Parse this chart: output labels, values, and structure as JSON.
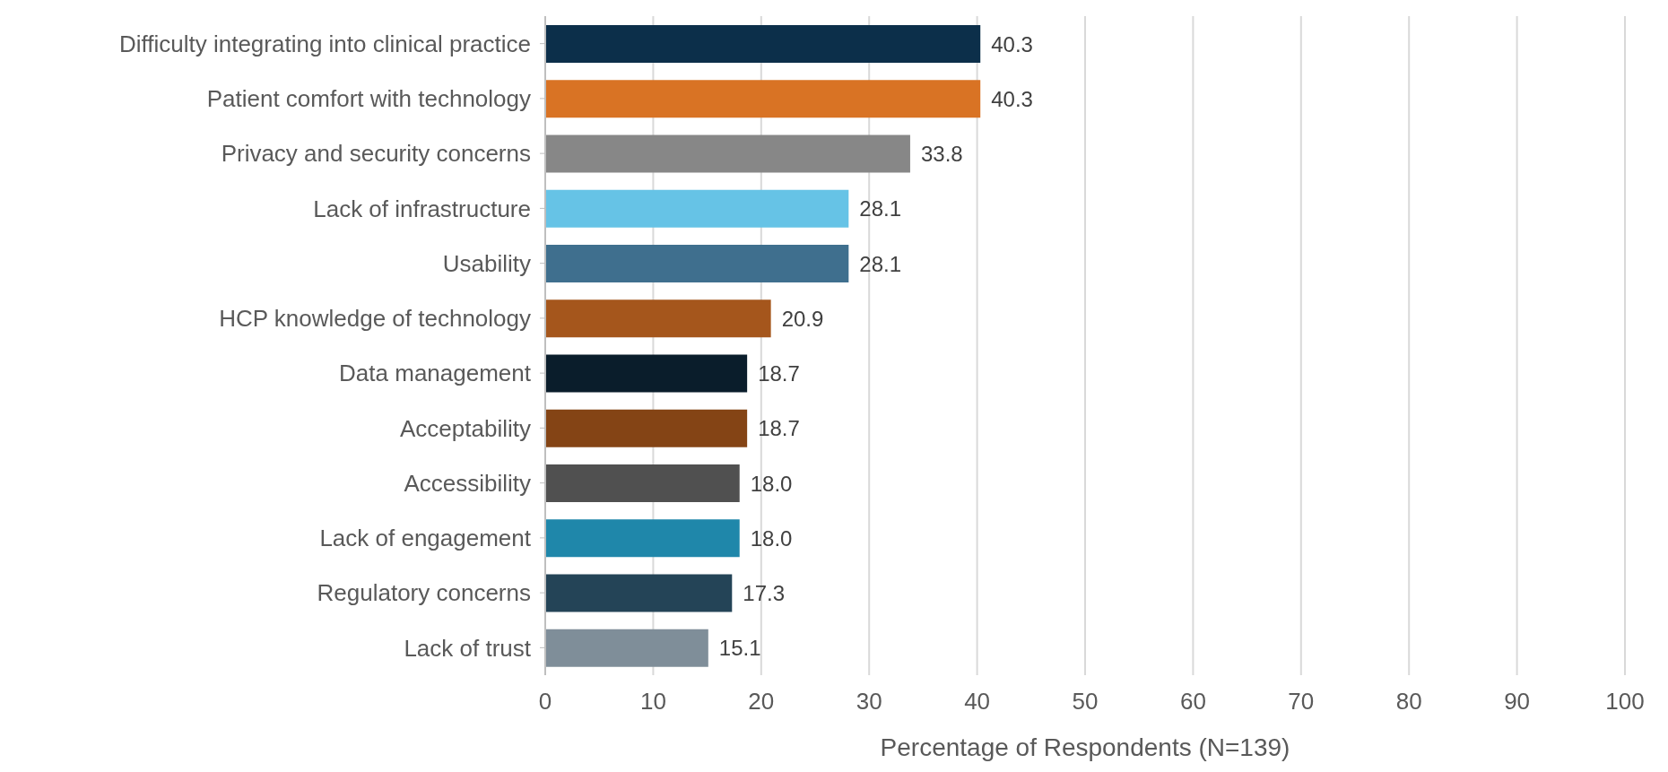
{
  "chart_data": {
    "type": "bar",
    "orientation": "horizontal",
    "xlabel": "Percentage of Respondents (N=139)",
    "categories": [
      "Difficulty integrating into clinical practice",
      "Patient comfort with technology",
      "Privacy and security concerns",
      "Lack of infrastructure",
      "Usability",
      "HCP knowledge of technology",
      "Data management",
      "Acceptability",
      "Accessibility",
      "Lack of engagement",
      "Regulatory concerns",
      "Lack of trust"
    ],
    "values": [
      40.3,
      40.3,
      33.8,
      28.1,
      28.1,
      20.9,
      18.7,
      18.7,
      18.0,
      18.0,
      17.3,
      15.1
    ],
    "value_labels": [
      "40.3",
      "40.3",
      "33.8",
      "28.1",
      "28.1",
      "20.9",
      "18.7",
      "18.7",
      "18.0",
      "18.0",
      "17.3",
      "15.1"
    ],
    "colors": [
      "#0c2f4a",
      "#d97324",
      "#878787",
      "#66c3e6",
      "#3f6f8e",
      "#a5561c",
      "#0a1d2b",
      "#844415",
      "#505050",
      "#1f87aa",
      "#244457",
      "#7f8e99"
    ],
    "xlim": [
      0,
      100
    ],
    "xticks": [
      0,
      10,
      20,
      30,
      40,
      50,
      60,
      70,
      80,
      90,
      100
    ],
    "grid": "x"
  }
}
